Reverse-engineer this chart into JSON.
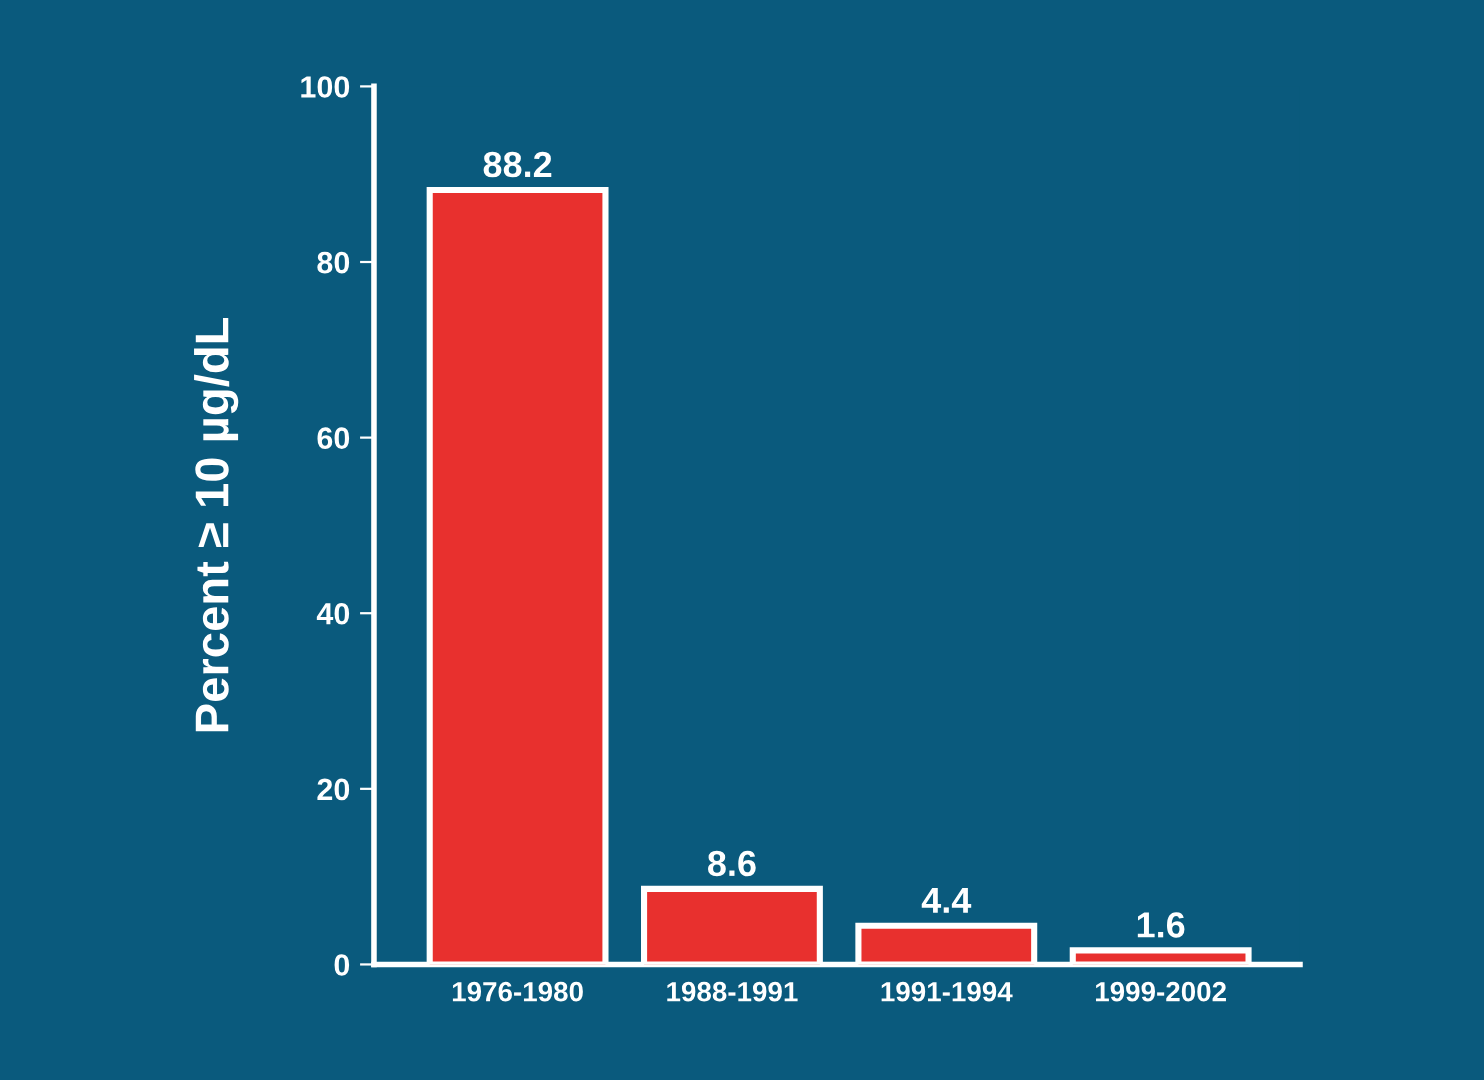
{
  "chart_data": {
    "type": "bar",
    "ylabel": "Percent ≥ 10 µg/dL",
    "categories": [
      "1976-1980",
      "1988-1991",
      "1991-1994",
      "1999-2002"
    ],
    "values": [
      88.2,
      8.6,
      4.4,
      1.6
    ],
    "color": "#e8302e",
    "ylim": [
      0,
      100
    ],
    "yticks": [
      0,
      20,
      40,
      60,
      80,
      100
    ],
    "grid": false,
    "data_labels": true,
    "legend": false
  }
}
